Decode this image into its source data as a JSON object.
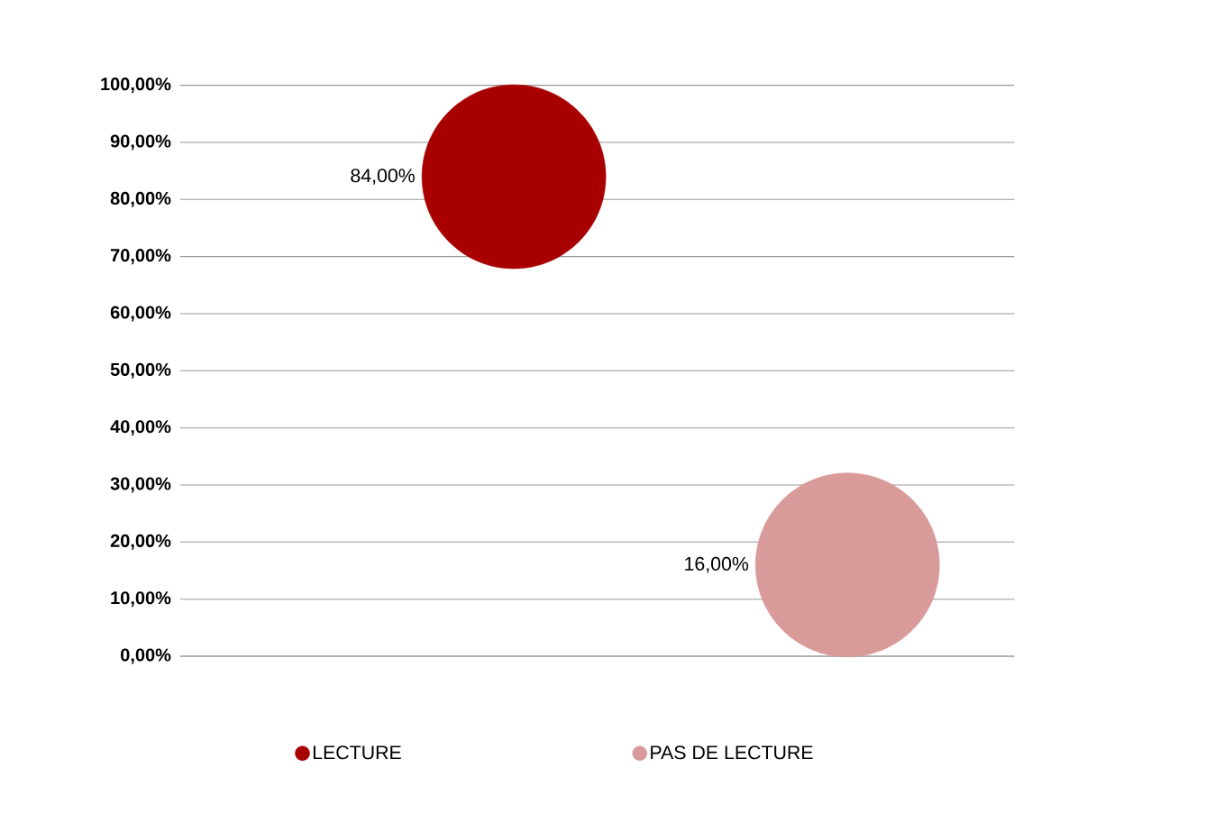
{
  "chart_data": {
    "type": "bubble",
    "categories": [
      null,
      null
    ],
    "series": [
      {
        "name": "LECTURE",
        "color": "#a80000",
        "values": [
          84,
          null
        ],
        "sizes": [
          1,
          null
        ],
        "value_labels": [
          "84,00%",
          null
        ]
      },
      {
        "name": "PAS DE LECTURE",
        "color": "#d99a9a",
        "values": [
          null,
          16
        ],
        "sizes": [
          null,
          1
        ],
        "value_labels": [
          null,
          "16,00%"
        ]
      }
    ],
    "ylim": [
      0,
      100
    ],
    "yticks": [
      {
        "value": 0,
        "label": "0,00%"
      },
      {
        "value": 10,
        "label": "10,00%"
      },
      {
        "value": 20,
        "label": "20,00%"
      },
      {
        "value": 30,
        "label": "30,00%"
      },
      {
        "value": 40,
        "label": "40,00%"
      },
      {
        "value": 50,
        "label": "50,00%"
      },
      {
        "value": 60,
        "label": "60,00%"
      },
      {
        "value": 70,
        "label": "70,00%"
      },
      {
        "value": 80,
        "label": "80,00%"
      },
      {
        "value": 90,
        "label": "90,00%"
      },
      {
        "value": 100,
        "label": "100,00%"
      }
    ],
    "grid": "y",
    "legend": "bottom",
    "tick_labels": "y"
  }
}
